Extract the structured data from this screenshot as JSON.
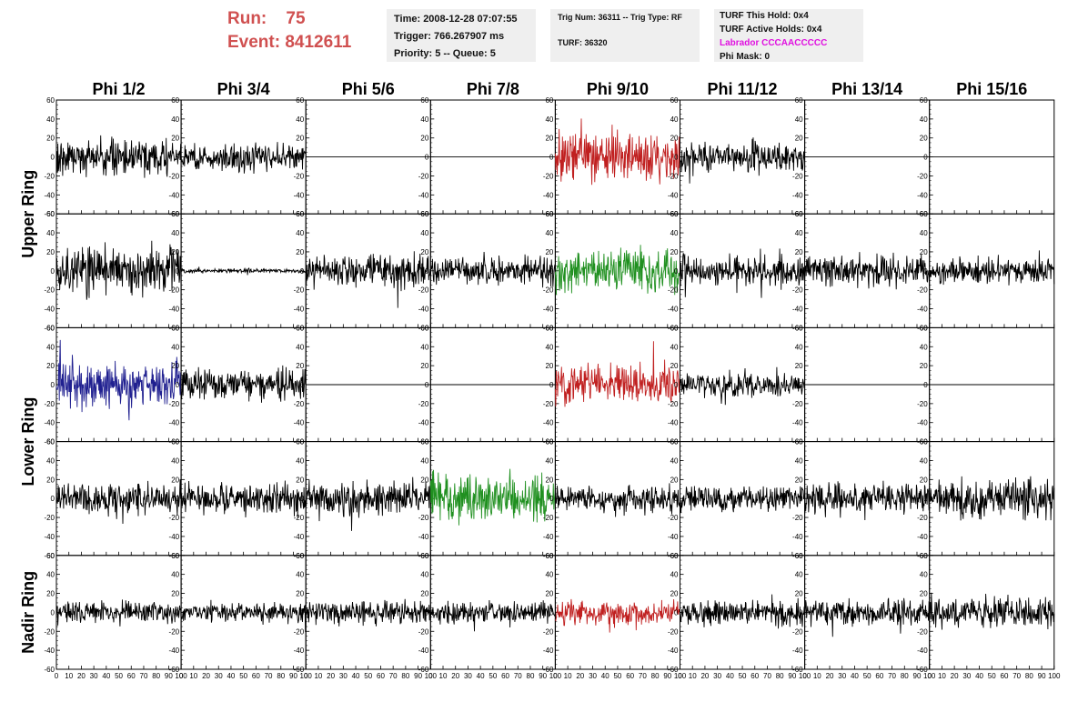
{
  "header": {
    "run_label": "Run:",
    "run_value": "75",
    "event_label": "Event:",
    "event_value": "8412611",
    "time": "Time: 2008-12-28 07:07:55",
    "trigger": "Trigger: 766.267907 ms",
    "priority": "Priority: 5 -- Queue: 5",
    "trig_num": "Trig Num: 36311 -- Trig Type: RF",
    "turf": "TURF: 36320",
    "turf_this_hold": "TURF This Hold: 0x4",
    "turf_active_holds": "TURF Active Holds: 0x4",
    "labrador": "Labrador CCCAACCCCC",
    "phi_mask": "Phi Mask: 0"
  },
  "colors": {
    "title_red": "#d05050",
    "magenta": "#e010e0",
    "trace_black": "#000000",
    "trace_red": "#c02020",
    "trace_green": "#209020",
    "trace_blue": "#202090"
  },
  "chart_data": {
    "type": "line",
    "columns": [
      "Phi 1/2",
      "Phi 3/4",
      "Phi 5/6",
      "Phi 7/8",
      "Phi 9/10",
      "Phi 11/12",
      "Phi 13/14",
      "Phi 15/16"
    ],
    "ring_labels": [
      {
        "label": "Upper Ring",
        "rows": [
          0,
          1
        ]
      },
      {
        "label": "Lower Ring",
        "rows": [
          2,
          3
        ]
      },
      {
        "label": "Nadir Ring",
        "rows": [
          4
        ]
      }
    ],
    "xlim": [
      0,
      100
    ],
    "ylim": [
      -60,
      60
    ],
    "x_ticks": [
      0,
      10,
      20,
      30,
      40,
      50,
      60,
      70,
      80,
      90,
      100
    ],
    "y_ticks": [
      -60,
      -40,
      -20,
      0,
      20,
      40,
      60
    ],
    "panels": [
      [
        {
          "amp": 17,
          "color": "black"
        },
        {
          "amp": 14,
          "color": "black"
        },
        {
          "amp": 0,
          "color": "black"
        },
        {
          "amp": 0,
          "color": "black"
        },
        {
          "amp": 24,
          "color": "red"
        },
        {
          "amp": 14,
          "color": "black"
        },
        {
          "amp": 0,
          "color": "black"
        },
        {
          "amp": 0,
          "color": "black"
        }
      ],
      [
        {
          "amp": 24,
          "color": "black"
        },
        {
          "amp": 2,
          "color": "black"
        },
        {
          "amp": 17,
          "color": "black"
        },
        {
          "amp": 14,
          "color": "black"
        },
        {
          "amp": 22,
          "color": "green"
        },
        {
          "amp": 15,
          "color": "black"
        },
        {
          "amp": 17,
          "color": "black"
        },
        {
          "amp": 13,
          "color": "black"
        }
      ],
      [
        {
          "amp": 22,
          "color": "blue"
        },
        {
          "amp": 16,
          "color": "black"
        },
        {
          "amp": 0,
          "color": "black"
        },
        {
          "amp": 0,
          "color": "black"
        },
        {
          "amp": 20,
          "color": "red"
        },
        {
          "amp": 12,
          "color": "black"
        },
        {
          "amp": 0,
          "color": "black"
        },
        {
          "amp": 0,
          "color": "black"
        }
      ],
      [
        {
          "amp": 15,
          "color": "black"
        },
        {
          "amp": 15,
          "color": "black"
        },
        {
          "amp": 17,
          "color": "black"
        },
        {
          "amp": 22,
          "color": "green"
        },
        {
          "amp": 13,
          "color": "black"
        },
        {
          "amp": 14,
          "color": "black"
        },
        {
          "amp": 15,
          "color": "black"
        },
        {
          "amp": 19,
          "color": "black"
        }
      ],
      [
        {
          "amp": 12,
          "color": "black"
        },
        {
          "amp": 10,
          "color": "black"
        },
        {
          "amp": 11,
          "color": "black"
        },
        {
          "amp": 11,
          "color": "black"
        },
        {
          "amp": 12,
          "color": "red"
        },
        {
          "amp": 13,
          "color": "black"
        },
        {
          "amp": 13,
          "color": "black"
        },
        {
          "amp": 15,
          "color": "black"
        }
      ]
    ]
  }
}
